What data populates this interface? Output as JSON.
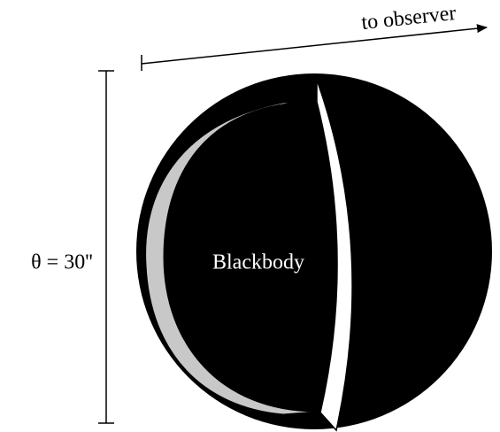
{
  "arrow_label": "to observer",
  "size_label": "θ = 30''",
  "sphere_label": "Blackbody"
}
